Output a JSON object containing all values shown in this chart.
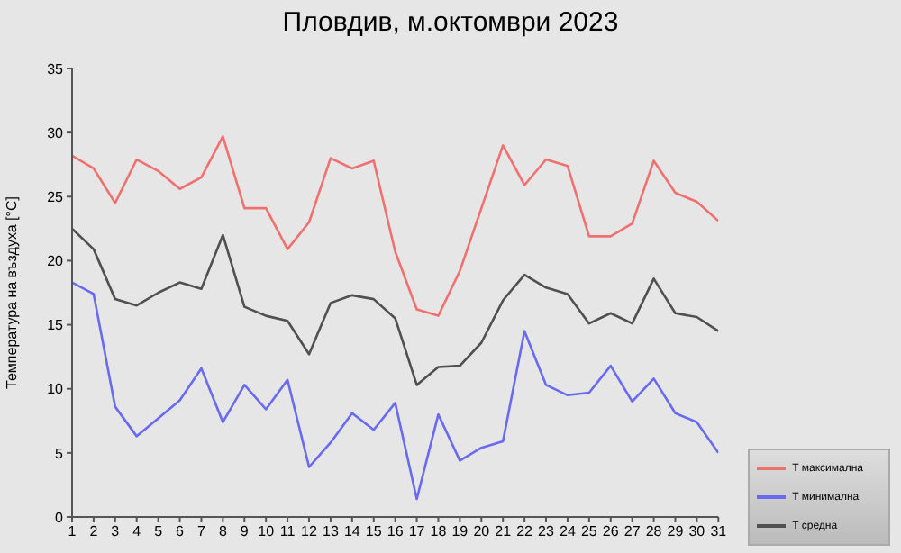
{
  "chart_data": {
    "type": "line",
    "title": "Пловдив, м.октомври 2023",
    "ylabel": "Температура на въздуха [°C]",
    "x": [
      1,
      2,
      3,
      4,
      5,
      6,
      7,
      8,
      9,
      10,
      11,
      12,
      13,
      14,
      15,
      16,
      17,
      18,
      19,
      20,
      21,
      22,
      23,
      24,
      25,
      26,
      27,
      28,
      29,
      30,
      31
    ],
    "series": [
      {
        "name": "T средна",
        "color": "#505050",
        "values": [
          22.5,
          20.9,
          17.0,
          16.5,
          17.5,
          18.3,
          17.8,
          22.0,
          16.4,
          15.7,
          15.3,
          12.7,
          16.7,
          17.3,
          17.0,
          15.5,
          10.3,
          11.7,
          11.8,
          13.6,
          16.9,
          18.9,
          17.9,
          17.4,
          15.1,
          15.9,
          15.1,
          18.6,
          15.9,
          15.6,
          14.5
        ]
      },
      {
        "name": "T максимална",
        "color": "#f07070",
        "values": [
          28.2,
          27.2,
          24.5,
          27.9,
          27.0,
          25.6,
          26.5,
          29.7,
          24.1,
          24.1,
          20.9,
          23.0,
          28.0,
          27.2,
          27.8,
          20.7,
          16.2,
          15.7,
          19.2,
          24.1,
          29.0,
          25.9,
          27.9,
          27.4,
          21.9,
          21.9,
          22.9,
          27.8,
          25.3,
          24.6,
          23.1
        ]
      },
      {
        "name": "T минимална",
        "color": "#6a6af0",
        "values": [
          18.3,
          17.4,
          8.6,
          6.3,
          7.7,
          9.1,
          11.6,
          7.4,
          10.3,
          8.4,
          10.7,
          3.9,
          5.8,
          8.1,
          6.8,
          8.9,
          1.4,
          8.0,
          4.4,
          5.4,
          5.9,
          14.5,
          10.3,
          9.5,
          9.7,
          11.8,
          9.0,
          10.8,
          8.1,
          7.4,
          5.0
        ]
      }
    ],
    "xlim": [
      1,
      31
    ],
    "xticks": [
      1,
      2,
      3,
      4,
      5,
      6,
      7,
      8,
      9,
      10,
      11,
      12,
      13,
      14,
      15,
      16,
      17,
      18,
      19,
      20,
      21,
      22,
      23,
      24,
      25,
      26,
      27,
      28,
      29,
      30,
      31
    ],
    "ylim": [
      0,
      35
    ],
    "yticks": [
      0,
      5,
      10,
      15,
      20,
      25,
      30,
      35
    ],
    "grid": false,
    "legend": "bottom right",
    "marker": "none",
    "line_style": "solid"
  }
}
